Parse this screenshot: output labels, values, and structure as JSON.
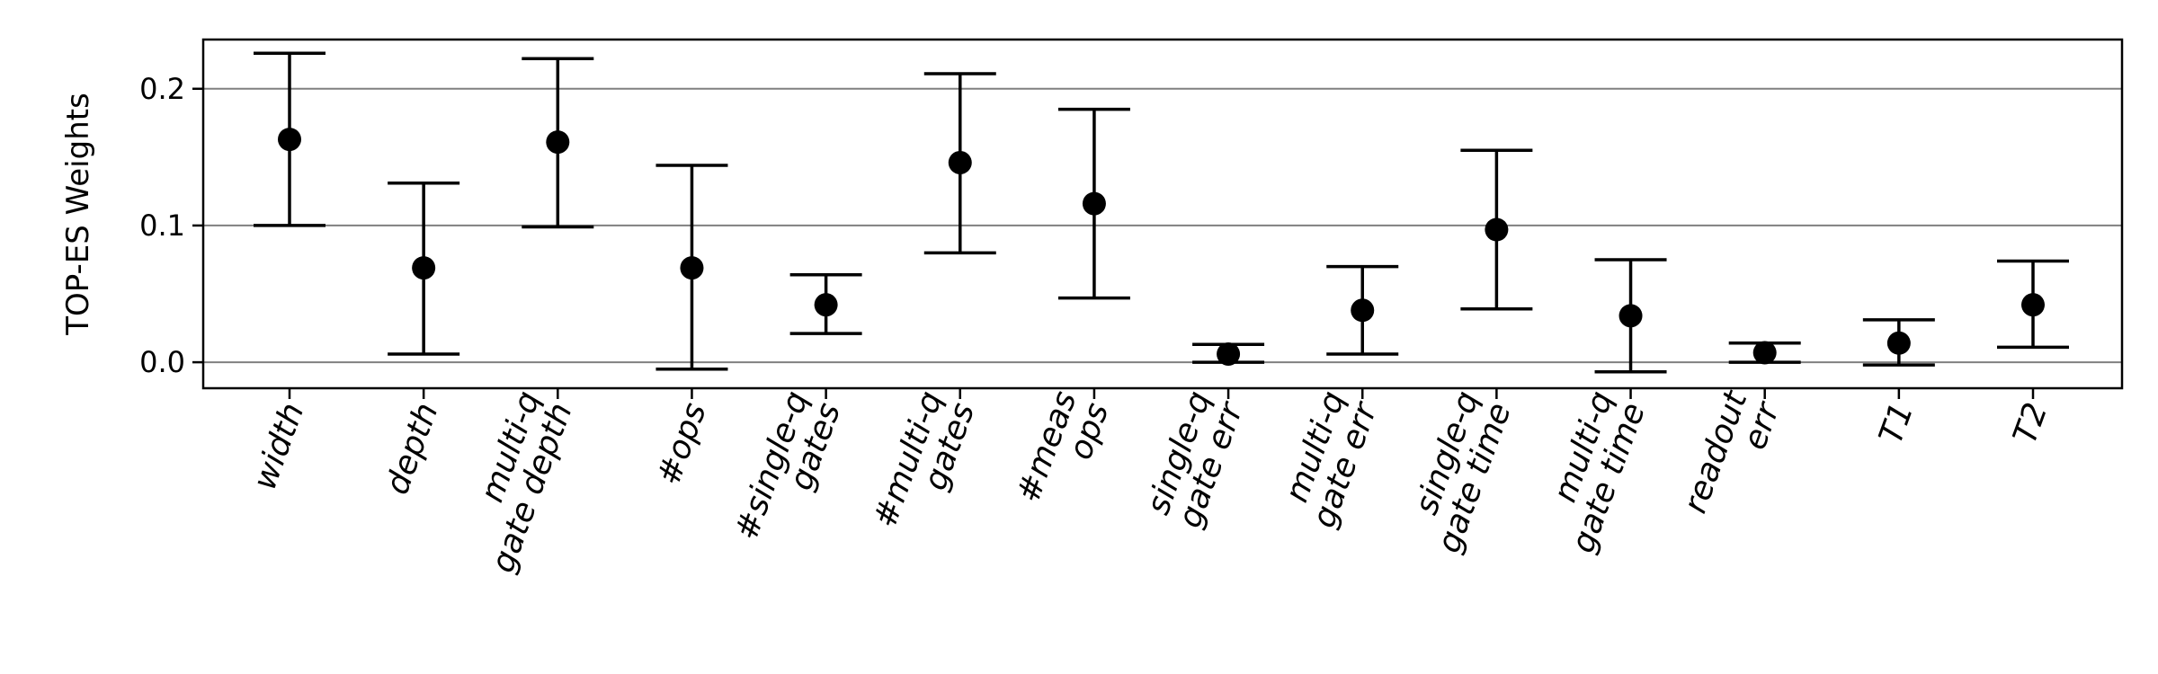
{
  "chart_data": {
    "type": "errorbar",
    "title": "",
    "xlabel": "",
    "ylabel": "TOP-ES Weights",
    "ylim": [
      -0.019,
      0.236
    ],
    "yticks": [
      0.0,
      0.1,
      0.2
    ],
    "ytick_labels": [
      "0.0",
      "0.1",
      "0.2"
    ],
    "grid": "horizontal",
    "marker_color": "#000000",
    "grid_color": "#808080",
    "categories": [
      [
        "width"
      ],
      [
        "depth"
      ],
      [
        "multi-q",
        "gate depth"
      ],
      [
        "#ops"
      ],
      [
        "#single-q",
        "gates"
      ],
      [
        "#multi-q",
        "gates"
      ],
      [
        "#meas",
        "ops"
      ],
      [
        "single-q",
        "gate err"
      ],
      [
        "multi-q",
        "gate err"
      ],
      [
        "single-q",
        "gate time"
      ],
      [
        "multi-q",
        "gate time"
      ],
      [
        "readout",
        "err"
      ],
      [
        "T1"
      ],
      [
        "T2"
      ]
    ],
    "values": [
      0.163,
      0.069,
      0.161,
      0.069,
      0.042,
      0.146,
      0.116,
      0.006,
      0.038,
      0.097,
      0.034,
      0.007,
      0.014,
      0.042
    ],
    "lower": [
      0.1,
      0.006,
      0.099,
      -0.005,
      0.021,
      0.08,
      0.047,
      0.0,
      0.006,
      0.039,
      -0.007,
      0.0,
      -0.002,
      0.011
    ],
    "upper": [
      0.226,
      0.131,
      0.222,
      0.144,
      0.064,
      0.211,
      0.185,
      0.013,
      0.07,
      0.155,
      0.075,
      0.014,
      0.031,
      0.074
    ]
  }
}
